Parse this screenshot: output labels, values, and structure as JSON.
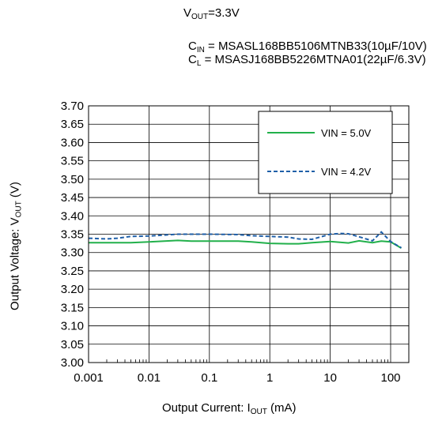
{
  "header": {
    "vout": {
      "main": "V",
      "sub": "OUT",
      "rest": "=3.3V"
    },
    "cin": {
      "main": "C",
      "sub": "IN",
      "rest": " = MSASL168BB5106MTNB33(10µF/10V)"
    },
    "cl": {
      "main": "C",
      "sub": "L",
      "rest": " = MSASJ168BB5226MTNA01(22µF/6.3V)"
    }
  },
  "chart_data": {
    "type": "line",
    "xlabel": {
      "main": "Output Current: I",
      "sub": "OUT",
      "rest": " (mA)"
    },
    "ylabel": {
      "main": "Output Voltage: V",
      "sub": "OUT",
      "rest": " (V)"
    },
    "xscale": "log",
    "xlim": [
      0.001,
      200
    ],
    "ylim": [
      3.0,
      3.7
    ],
    "x_ticks": [
      0.001,
      0.01,
      0.1,
      1,
      10,
      100
    ],
    "x_tick_labels": [
      "0.001",
      "0.01",
      "0.1",
      "1",
      "10",
      "100"
    ],
    "y_ticks": [
      3.0,
      3.05,
      3.1,
      3.15,
      3.2,
      3.25,
      3.3,
      3.35,
      3.4,
      3.45,
      3.5,
      3.55,
      3.6,
      3.65,
      3.7
    ],
    "y_tick_labels": [
      "3.00",
      "3.05",
      "3.10",
      "3.15",
      "3.20",
      "3.25",
      "3.30",
      "3.35",
      "3.40",
      "3.45",
      "3.50",
      "3.55",
      "3.60",
      "3.65",
      "3.70"
    ],
    "grid": true,
    "legend_position": "top-right",
    "series": [
      {
        "name": "VIN = 5.0V",
        "color": "#22b04b",
        "style": "solid",
        "x": [
          0.001,
          0.002,
          0.005,
          0.01,
          0.03,
          0.05,
          0.1,
          0.3,
          0.5,
          1,
          2,
          3,
          5,
          10,
          20,
          30,
          50,
          70,
          100,
          150
        ],
        "y": [
          3.327,
          3.327,
          3.327,
          3.329,
          3.333,
          3.331,
          3.331,
          3.331,
          3.329,
          3.325,
          3.324,
          3.324,
          3.327,
          3.33,
          3.326,
          3.332,
          3.327,
          3.331,
          3.329,
          3.312
        ]
      },
      {
        "name": "VIN = 4.2V",
        "color": "#1f5fa8",
        "style": "dashed",
        "x": [
          0.001,
          0.002,
          0.003,
          0.005,
          0.01,
          0.03,
          0.05,
          0.1,
          0.3,
          0.5,
          1,
          2,
          3,
          5,
          10,
          15,
          20,
          30,
          50,
          70,
          100,
          150
        ],
        "y": [
          3.339,
          3.337,
          3.339,
          3.344,
          3.345,
          3.35,
          3.35,
          3.35,
          3.349,
          3.346,
          3.344,
          3.342,
          3.337,
          3.336,
          3.35,
          3.352,
          3.351,
          3.343,
          3.332,
          3.356,
          3.33,
          3.313
        ]
      }
    ]
  }
}
